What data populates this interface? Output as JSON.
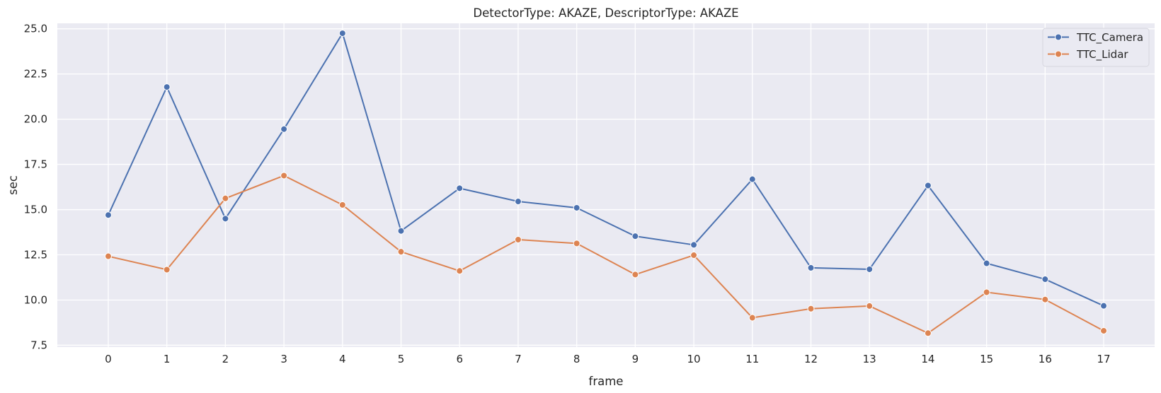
{
  "chart_data": {
    "type": "line",
    "title": "DetectorType: AKAZE, DescriptorType: AKAZE",
    "xlabel": "frame",
    "ylabel": "sec",
    "x": [
      0,
      1,
      2,
      3,
      4,
      5,
      6,
      7,
      8,
      9,
      10,
      11,
      12,
      13,
      14,
      15,
      16,
      17
    ],
    "xlim": [
      -0.87,
      17.87
    ],
    "ylim": [
      7.4,
      25.3
    ],
    "yticks": [
      7.5,
      10.0,
      12.5,
      15.0,
      17.5,
      20.0,
      22.5,
      25.0
    ],
    "ytick_labels": [
      "7.5",
      "10.0",
      "12.5",
      "15.0",
      "17.5",
      "20.0",
      "22.5",
      "25.0"
    ],
    "grid": true,
    "legend_position": "top-right",
    "background": "#eaeaf2",
    "series": [
      {
        "name": "TTC_Camera",
        "color": "#4c72b0",
        "marker": "circle",
        "values": [
          14.7,
          21.78,
          14.5,
          19.45,
          24.75,
          13.82,
          16.18,
          15.45,
          15.1,
          13.53,
          13.05,
          16.68,
          11.78,
          11.7,
          16.33,
          12.03,
          11.15,
          9.68
        ]
      },
      {
        "name": "TTC_Lidar",
        "color": "#dd8452",
        "marker": "circle",
        "values": [
          12.42,
          11.68,
          15.62,
          16.88,
          15.26,
          12.67,
          11.61,
          13.34,
          13.13,
          11.41,
          12.48,
          9.02,
          9.52,
          9.67,
          8.17,
          10.43,
          10.03,
          8.3
        ]
      }
    ]
  }
}
